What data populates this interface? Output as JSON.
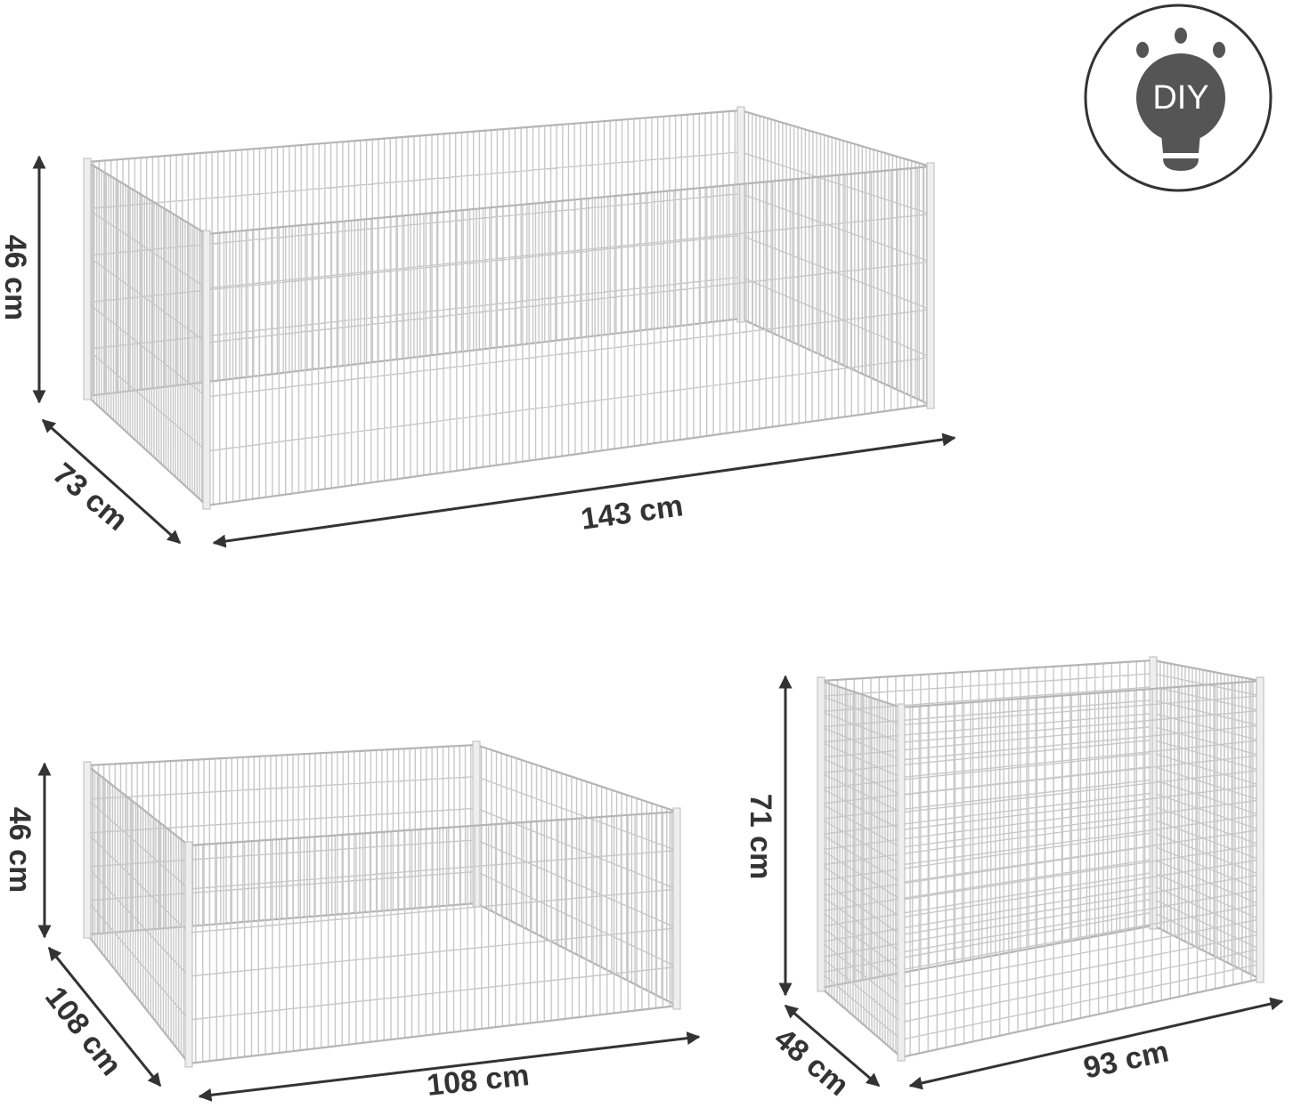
{
  "badge": "DIY",
  "configurations": [
    {
      "height": "46 cm",
      "depth": "73 cm",
      "width": "143 cm"
    },
    {
      "height": "46 cm",
      "depth": "108 cm",
      "width": "108 cm"
    },
    {
      "height": "71 cm",
      "depth": "48 cm",
      "width": "93 cm"
    }
  ]
}
